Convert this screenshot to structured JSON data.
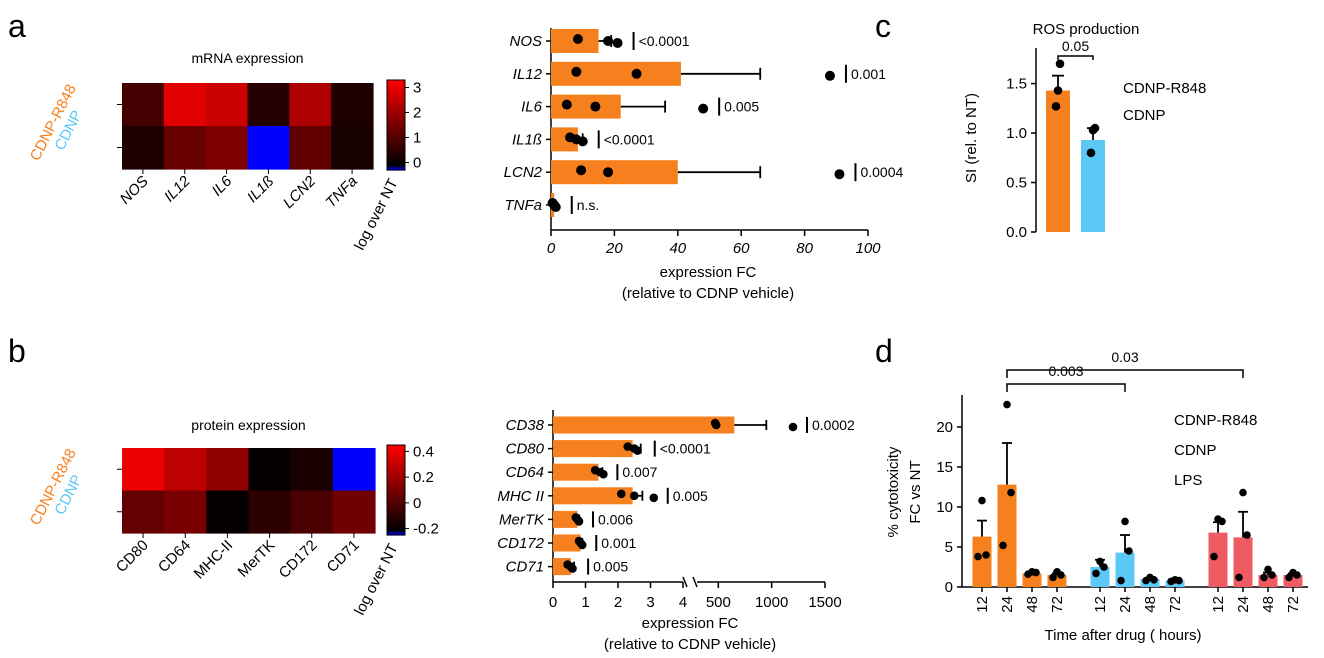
{
  "colors": {
    "orange": "#F7801E",
    "blue": "#5BC8F5",
    "red": "#EF5B62"
  },
  "panel_labels": [
    "a",
    "b",
    "c",
    "d"
  ],
  "chart_data": [
    {
      "id": "a-heatmap",
      "type": "heatmap",
      "title": "mRNA expression",
      "rows": [
        "CDNP-R848",
        "CDNP"
      ],
      "columns": [
        "NOS",
        "IL12",
        "IL6",
        "IL1ß",
        "LCN2",
        "TNFa"
      ],
      "values": [
        [
          0.8,
          2.9,
          2.6,
          0.4,
          2.2,
          0.3
        ],
        [
          0.3,
          1.3,
          1.6,
          -1.0,
          1.2,
          0.2
        ]
      ],
      "colorbar": {
        "label": "log over NT",
        "min": -0.3,
        "max": 3.3,
        "ticks": [
          0,
          1,
          2,
          3
        ]
      }
    },
    {
      "id": "a-bars",
      "type": "bar",
      "orientation": "horizontal",
      "categories": [
        "NOS",
        "IL12",
        "IL6",
        "IL1ß",
        "LCN2",
        "TNFa"
      ],
      "values": [
        15,
        41,
        22,
        8.5,
        40,
        1
      ],
      "errors": [
        4,
        25,
        14,
        1.5,
        26,
        0.3
      ],
      "points": [
        [
          8.5,
          18,
          21
        ],
        [
          8,
          27,
          88
        ],
        [
          5,
          14,
          48
        ],
        [
          6,
          8,
          10
        ],
        [
          9.5,
          18,
          91
        ],
        [
          0.5,
          1,
          1.5
        ]
      ],
      "pvalues": [
        "<0.0001",
        "0.001",
        "0.005",
        "<0.0001",
        "0.0004",
        "n.s."
      ],
      "xlim": [
        0,
        100
      ],
      "xticks": [
        0,
        20,
        40,
        60,
        80,
        100
      ],
      "xlabel": [
        "expression FC",
        "(relative to CDNP vehicle)"
      ]
    },
    {
      "id": "b-heatmap",
      "type": "heatmap",
      "title": "protein expression",
      "rows": [
        "CDNP-R848",
        "CDNP"
      ],
      "columns": [
        "CD80",
        "CD64",
        "MHC-II",
        "MerTK",
        "CD172",
        "CD71"
      ],
      "values": [
        [
          0.4,
          0.28,
          0.15,
          -0.2,
          -0.15,
          -0.28
        ],
        [
          0.05,
          0.1,
          -0.2,
          -0.1,
          -0.02,
          0.08
        ]
      ],
      "colorbar": {
        "label": "log over NT",
        "min": -0.25,
        "max": 0.45,
        "ticks": [
          -0.2,
          0,
          0.2,
          0.4
        ],
        "ticklabels": [
          "-0.2",
          "0",
          "0.2",
          "0.4"
        ]
      }
    },
    {
      "id": "b-bars",
      "type": "bar",
      "orientation": "horizontal",
      "categories": [
        "CD38",
        "CD80",
        "CD64",
        "MHC II",
        "MerTK",
        "CD172",
        "CD71"
      ],
      "values": [
        650,
        2.45,
        1.4,
        2.45,
        0.75,
        0.85,
        0.55
      ],
      "errors": [
        300,
        0.25,
        0.12,
        0.3,
        0.05,
        0.05,
        0.1
      ],
      "points": [
        [
          470,
          480,
          1200
        ],
        [
          2.3,
          2.5,
          2.6
        ],
        [
          1.3,
          1.45,
          1.55
        ],
        [
          2.1,
          2.5,
          3.1
        ],
        [
          0.7,
          0.75,
          0.8
        ],
        [
          0.8,
          0.85,
          0.9
        ],
        [
          0.45,
          0.55,
          0.6
        ]
      ],
      "pvalues": [
        "0.0002",
        "<0.0001",
        "0.007",
        "0.005",
        "0.006",
        "0.001",
        "0.005"
      ],
      "xaxis_segments": [
        {
          "range": [
            0,
            4
          ],
          "ticks": [
            0,
            1,
            2,
            3,
            4
          ]
        },
        {
          "range": [
            300,
            1500
          ],
          "ticks": [
            500,
            1000,
            1500
          ]
        }
      ],
      "xlabel": [
        "expression FC",
        "(relative to CDNP vehicle)"
      ]
    },
    {
      "id": "c",
      "type": "bar",
      "title": "ROS production",
      "categories": [
        "CDNP-R848",
        "CDNP"
      ],
      "values": [
        1.43,
        0.93
      ],
      "errors": [
        0.15,
        0.12
      ],
      "points": [
        [
          1.27,
          1.43,
          1.7
        ],
        [
          0.8,
          1.03,
          1.05
        ]
      ],
      "series_colors": [
        "#F7801E",
        "#5BC8F5"
      ],
      "ylabel": "SI (rel. to NT)",
      "ylim": [
        0,
        1.9
      ],
      "yticks": [
        0.0,
        0.5,
        1.0,
        1.5
      ],
      "yticklabels": [
        "0.0",
        "0.5",
        "1.0",
        "1.5"
      ],
      "bracket": {
        "from": 0,
        "to": 1,
        "label": "0.05"
      },
      "legend": [
        "CDNP-R848",
        "CDNP"
      ]
    },
    {
      "id": "d",
      "type": "bar",
      "groups": [
        {
          "name": "CDNP-R848",
          "color": "#F7801E",
          "x": [
            "12",
            "24",
            "48",
            "72"
          ],
          "values": [
            6.3,
            12.8,
            1.7,
            1.5
          ],
          "errors": [
            2.0,
            5.2,
            0.2,
            0.2
          ],
          "points": [
            [
              3.8,
              4,
              10.8
            ],
            [
              5.2,
              11.8,
              22.8
            ],
            [
              1.6,
              1.8,
              1.9
            ],
            [
              1.2,
              1.5,
              1.9
            ]
          ]
        },
        {
          "name": "CDNP",
          "color": "#5BC8F5",
          "x": [
            "12",
            "24",
            "48",
            "72"
          ],
          "values": [
            2.5,
            4.3,
            1.0,
            0.8
          ],
          "errors": [
            0.9,
            2.2,
            0.15,
            0.1
          ],
          "points": [
            [
              1.7,
              2.5,
              3.2
            ],
            [
              0.8,
              4.5,
              8.2
            ],
            [
              0.8,
              0.9,
              1.2
            ],
            [
              0.7,
              0.8,
              0.9
            ]
          ]
        },
        {
          "name": "LPS",
          "color": "#EF5B62",
          "x": [
            "12",
            "24",
            "48",
            "72"
          ],
          "values": [
            6.8,
            6.2,
            1.5,
            1.5
          ],
          "errors": [
            1.3,
            3.2,
            0.3,
            0.2
          ],
          "points": [
            [
              3.8,
              8.2,
              8.5
            ],
            [
              1.2,
              6.5,
              11.8
            ],
            [
              1.2,
              1.5,
              2.2
            ],
            [
              1.2,
              1.5,
              1.8
            ]
          ]
        }
      ],
      "ylabel": [
        "% cytotoxicity",
        "FC vs NT"
      ],
      "ylim": [
        0,
        24
      ],
      "yticks": [
        0,
        5,
        10,
        15,
        20
      ],
      "xlabel": "Time after drug ( hours)",
      "brackets": [
        {
          "from": "CDNP-R848 24",
          "to": "CDNP 24",
          "label": "0.003"
        },
        {
          "from": "CDNP-R848 24",
          "to": "LPS 24",
          "label": "0.03"
        }
      ],
      "legend": [
        "CDNP-R848",
        "CDNP",
        "LPS"
      ]
    }
  ]
}
